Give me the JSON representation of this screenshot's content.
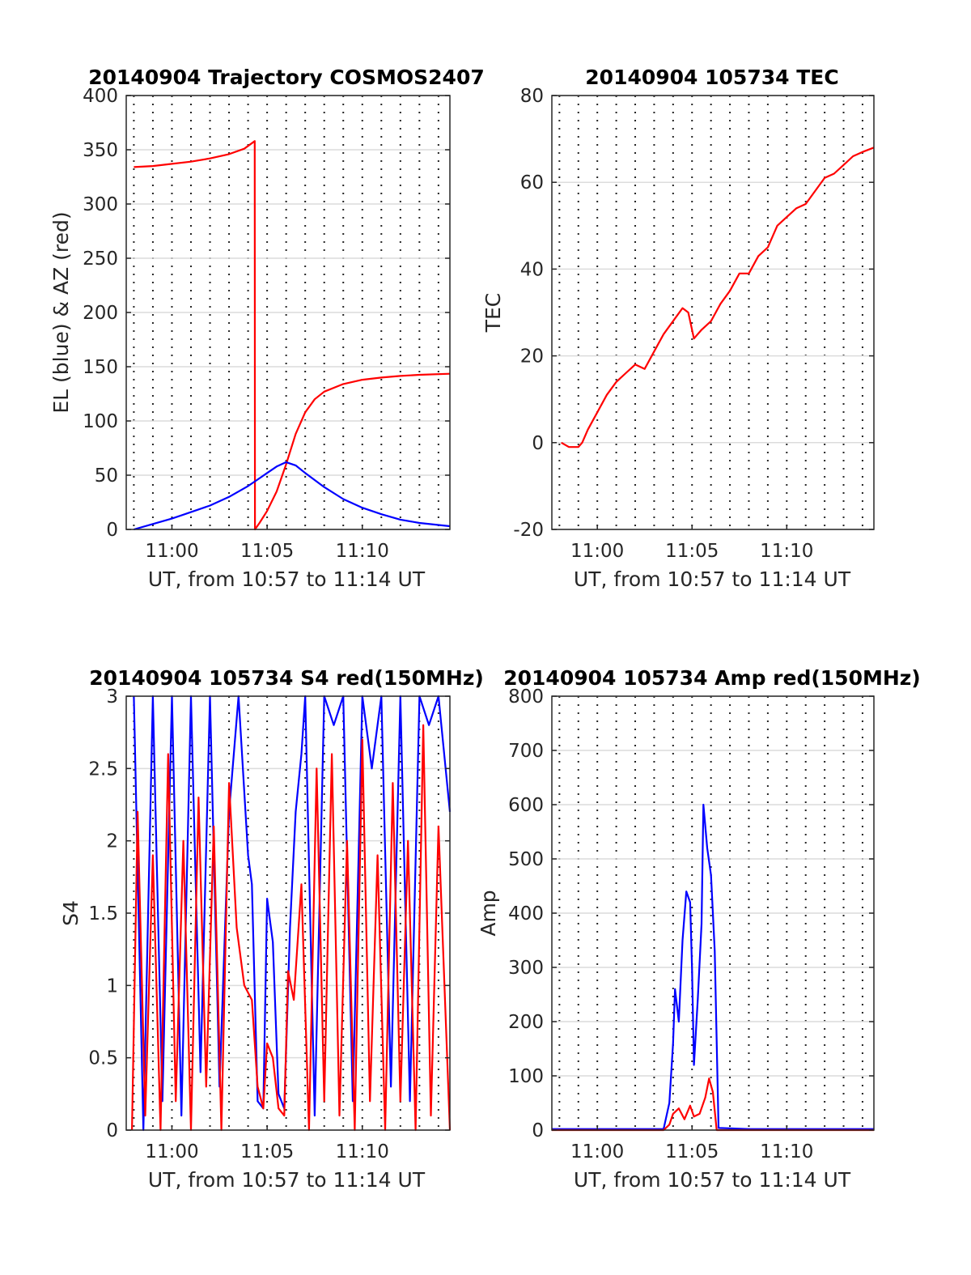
{
  "chart_data": [
    {
      "type": "line",
      "title": "20140904 Trajectory COSMOS2407",
      "xlabel": "UT, from 10:57 to 11:14 UT",
      "ylabel": "EL (blue) & AZ (red)",
      "xlim": [
        -2.4,
        14.6
      ],
      "ylim": [
        0,
        400
      ],
      "xticks": [
        0,
        5,
        10
      ],
      "xticklabels": [
        "11:00",
        "11:05",
        "11:10"
      ],
      "yticks": [
        0,
        50,
        100,
        150,
        200,
        250,
        300,
        350,
        400
      ],
      "yticklabels": [
        "0",
        "50",
        "100",
        "150",
        "200",
        "250",
        "300",
        "350",
        "400"
      ],
      "grid": true,
      "series": [
        {
          "color": "#ff0000",
          "x": [
            -2.0,
            -1.0,
            0.0,
            1.0,
            2.0,
            3.0,
            3.8,
            4.35,
            4.36,
            4.6,
            5.0,
            5.5,
            6.0,
            6.5,
            7.0,
            7.5,
            8.0,
            9.0,
            10.0,
            11.0,
            12.0,
            13.0,
            14.6
          ],
          "y": [
            334,
            335,
            337,
            339,
            342,
            346,
            351,
            358,
            0,
            6,
            17,
            35,
            60,
            88,
            108,
            120,
            127,
            134,
            138,
            140,
            141.5,
            142.5,
            143.5
          ]
        },
        {
          "color": "#0000ff",
          "x": [
            -2.0,
            -1.0,
            0.0,
            1.0,
            2.0,
            3.0,
            4.0,
            4.5,
            5.0,
            5.5,
            6.0,
            6.5,
            7.0,
            8.0,
            9.0,
            10.0,
            11.0,
            12.0,
            13.0,
            14.6
          ],
          "y": [
            0,
            5,
            10,
            16,
            22,
            30,
            40,
            46,
            52,
            58,
            62,
            59,
            52,
            39,
            28,
            20,
            14,
            9,
            6,
            3
          ]
        }
      ]
    },
    {
      "type": "line",
      "title": "20140904 105734 TEC",
      "xlabel": "UT, from 10:57 to 11:14 UT",
      "ylabel": "TEC",
      "xlim": [
        -2.4,
        14.6
      ],
      "ylim": [
        -20,
        80
      ],
      "xticks": [
        0,
        5,
        10
      ],
      "xticklabels": [
        "11:00",
        "11:05",
        "11:10"
      ],
      "yticks": [
        -20,
        0,
        20,
        40,
        60,
        80
      ],
      "yticklabels": [
        "-20",
        "0",
        "20",
        "40",
        "60",
        "80"
      ],
      "grid": true,
      "series": [
        {
          "color": "#ff0000",
          "x": [
            -1.9,
            -1.5,
            -1.0,
            -0.8,
            -0.5,
            0.0,
            0.5,
            1.0,
            1.5,
            2.0,
            2.5,
            3.0,
            3.5,
            4.0,
            4.5,
            4.8,
            5.1,
            5.5,
            6.0,
            6.5,
            7.0,
            7.5,
            8.0,
            8.5,
            9.0,
            9.5,
            10.0,
            10.5,
            11.0,
            11.5,
            12.0,
            12.5,
            13.0,
            13.5,
            14.0,
            14.6
          ],
          "y": [
            0,
            -1,
            -1,
            0,
            3,
            7,
            11,
            14,
            16,
            18,
            17,
            21,
            25,
            28,
            31,
            30,
            24,
            26,
            28,
            32,
            35,
            39,
            39,
            43,
            45,
            50,
            52,
            54,
            55,
            58,
            61,
            62,
            64,
            66,
            67,
            68
          ]
        }
      ]
    },
    {
      "type": "line",
      "title": "20140904 105734 S4 red(150MHz)",
      "xlabel": "UT, from 10:57 to 11:14 UT",
      "ylabel": "S4",
      "xlim": [
        -2.4,
        14.6
      ],
      "ylim": [
        0,
        3
      ],
      "xticks": [
        0,
        5,
        10
      ],
      "xticklabels": [
        "11:00",
        "11:05",
        "11:10"
      ],
      "yticks": [
        0,
        0.5,
        1,
        1.5,
        2,
        2.5,
        3
      ],
      "yticklabels": [
        "0",
        "0.5",
        "1",
        "1.5",
        "2",
        "2.5",
        "3"
      ],
      "grid": true,
      "series": [
        {
          "color": "#0000ff",
          "x": [
            -2.0,
            -1.5,
            -1.0,
            -0.5,
            0.0,
            0.5,
            1.0,
            1.5,
            2.0,
            2.5,
            3.0,
            3.5,
            4.0,
            4.2,
            4.5,
            4.8,
            5.0,
            5.3,
            5.6,
            5.9,
            6.2,
            6.5,
            6.8,
            7.0,
            7.5,
            8.0,
            8.5,
            9.0,
            9.5,
            10.0,
            10.5,
            11.0,
            11.5,
            12.0,
            12.5,
            13.0,
            13.5,
            14.0,
            14.6
          ],
          "y": [
            3,
            0,
            3,
            0.2,
            3,
            0.1,
            3,
            0.4,
            3,
            0.3,
            2.2,
            3,
            1.9,
            1.7,
            0.2,
            0.15,
            1.6,
            1.3,
            0.25,
            0.15,
            1.4,
            2.2,
            2.6,
            3,
            0.1,
            3,
            2.8,
            3,
            0.2,
            3,
            2.5,
            3,
            0.3,
            3,
            0.2,
            3,
            2.8,
            3,
            2.2
          ]
        },
        {
          "color": "#ff0000",
          "x": [
            -2.1,
            -1.8,
            -1.4,
            -1.0,
            -0.6,
            -0.2,
            0.2,
            0.6,
            1.0,
            1.4,
            1.8,
            2.2,
            2.6,
            3.0,
            3.4,
            3.8,
            4.2,
            4.5,
            4.8,
            5.0,
            5.3,
            5.6,
            5.9,
            6.1,
            6.4,
            6.8,
            7.2,
            7.6,
            8.0,
            8.4,
            8.8,
            9.2,
            9.6,
            10.0,
            10.4,
            10.8,
            11.2,
            11.6,
            12.0,
            12.4,
            12.8,
            13.2,
            13.6,
            14.0,
            14.6
          ],
          "y": [
            0,
            2.2,
            0.1,
            1.9,
            0,
            2.6,
            0.2,
            2.0,
            0,
            2.3,
            0.3,
            2.1,
            0,
            2.4,
            1.4,
            1.0,
            0.9,
            0.3,
            0.15,
            0.6,
            0.5,
            0.15,
            0.1,
            1.1,
            0.9,
            1.7,
            0,
            2.5,
            0.2,
            2.6,
            0.1,
            2.0,
            0,
            2.7,
            0.2,
            1.9,
            0,
            2.4,
            0.2,
            2.0,
            0,
            2.8,
            0.1,
            2.1,
            0
          ]
        }
      ]
    },
    {
      "type": "line",
      "title": "20140904 105734 Amp red(150MHz)",
      "xlabel": "UT, from 10:57 to 11:14 UT",
      "ylabel": "Amp",
      "xlim": [
        -2.4,
        14.6
      ],
      "ylim": [
        0,
        800
      ],
      "xticks": [
        0,
        5,
        10
      ],
      "xticklabels": [
        "11:00",
        "11:05",
        "11:10"
      ],
      "yticks": [
        0,
        100,
        200,
        300,
        400,
        500,
        600,
        700,
        800
      ],
      "yticklabels": [
        "0",
        "100",
        "200",
        "300",
        "400",
        "500",
        "600",
        "700",
        "800"
      ],
      "grid": true,
      "series": [
        {
          "color": "#0000ff",
          "x": [
            -2.4,
            0.0,
            2.0,
            3.5,
            3.8,
            4.0,
            4.1,
            4.3,
            4.5,
            4.7,
            4.9,
            5.0,
            5.1,
            5.3,
            5.5,
            5.6,
            5.8,
            6.0,
            6.2,
            6.4,
            8.0,
            10.0,
            12.0,
            14.6
          ],
          "y": [
            2,
            2,
            2,
            2,
            50,
            160,
            260,
            200,
            350,
            440,
            420,
            300,
            120,
            240,
            380,
            600,
            520,
            470,
            330,
            4,
            2,
            2,
            2,
            2
          ]
        },
        {
          "color": "#ff0000",
          "x": [
            -2.4,
            3.5,
            3.8,
            4.0,
            4.3,
            4.6,
            4.9,
            5.1,
            5.4,
            5.7,
            5.9,
            6.1,
            6.3,
            14.6
          ],
          "y": [
            0,
            0,
            10,
            30,
            40,
            20,
            45,
            25,
            30,
            60,
            95,
            70,
            0,
            0
          ]
        }
      ]
    }
  ]
}
